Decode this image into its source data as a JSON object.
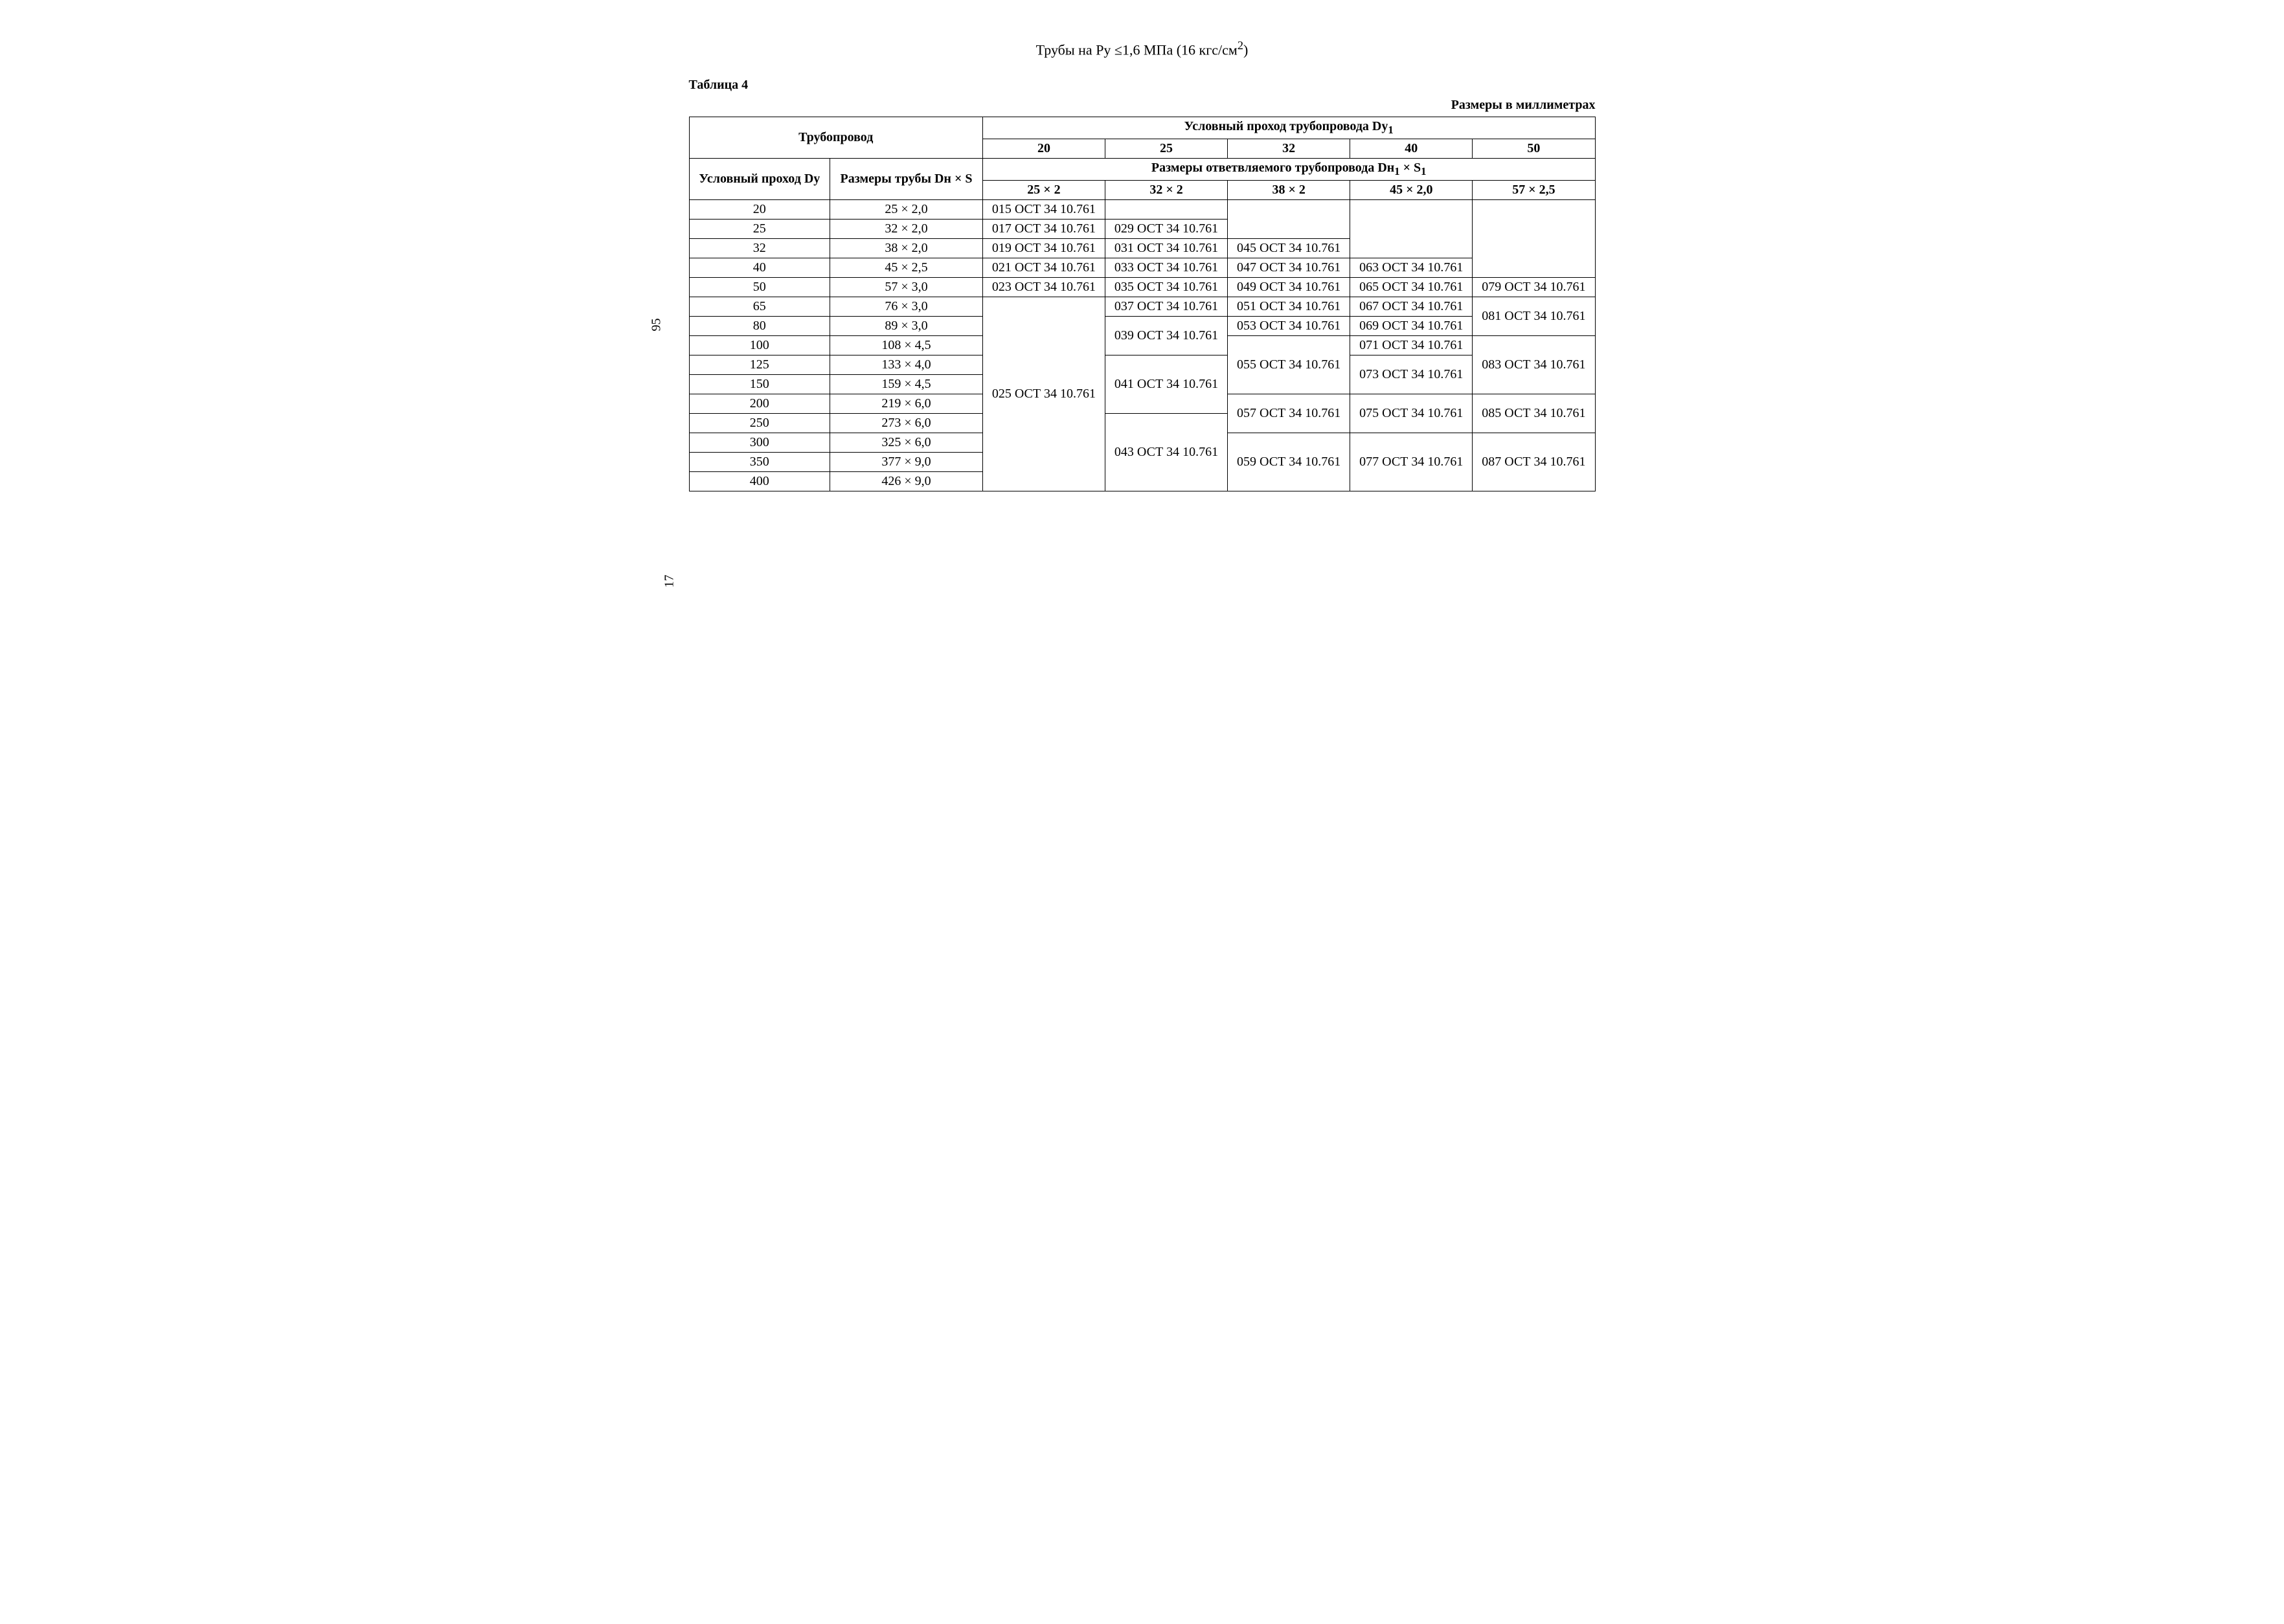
{
  "title_html": "Трубы на Ру ≤1,6 МПа (16 кгс/см<sup>2</sup>)",
  "table_label": "Таблица 4",
  "units_label": "Размеры в миллиметрах",
  "side_page_number": "95",
  "bottom_page_number": "17",
  "header": {
    "truboprovod": "Трубопровод",
    "usl_prohod_dy1_html": "Условный проход трубопровода Dу<sub>1</sub>",
    "usl_prohod_dy": "Условный проход Dу",
    "razmery_truby": "Размеры трубы Dн × S",
    "razmery_otv_html": "Размеры ответвляемого трубопровода Dн<sub>1</sub> × S<sub>1</sub>",
    "dy1_cols": [
      "20",
      "25",
      "32",
      "40",
      "50"
    ],
    "size_cols": [
      "25 × 2",
      "32 × 2",
      "38 × 2",
      "45 × 2,0",
      "57 × 2,5"
    ]
  },
  "rows": [
    {
      "dy": "20",
      "dn": "25 × 2,0"
    },
    {
      "dy": "25",
      "dn": "32 × 2,0"
    },
    {
      "dy": "32",
      "dn": "38 × 2,0"
    },
    {
      "dy": "40",
      "dn": "45 × 2,5"
    },
    {
      "dy": "50",
      "dn": "57 × 3,0"
    },
    {
      "dy": "65",
      "dn": "76 × 3,0"
    },
    {
      "dy": "80",
      "dn": "89 × 3,0"
    },
    {
      "dy": "100",
      "dn": "108 × 4,5"
    },
    {
      "dy": "125",
      "dn": "133 × 4,0"
    },
    {
      "dy": "150",
      "dn": "159 × 4,5"
    },
    {
      "dy": "200",
      "dn": "219 × 6,0"
    },
    {
      "dy": "250",
      "dn": "273 × 6,0"
    },
    {
      "dy": "300",
      "dn": "325 × 6,0"
    },
    {
      "dy": "350",
      "dn": "377 × 9,0"
    },
    {
      "dy": "400",
      "dn": "426 × 9,0"
    }
  ],
  "col1": {
    "r0": "015 ОСТ 34 10.761",
    "r1": "017 ОСТ 34 10.761",
    "r2": "019 ОСТ 34 10.761",
    "r3": "021 ОСТ 34 10.761",
    "r4": "023 ОСТ 34 10.761",
    "merged": "025 ОСТ 34 10.761"
  },
  "col2": {
    "r1": "029 ОСТ 34 10.761",
    "r2": "031 ОСТ 34 10.761",
    "r3": "033 ОСТ 34 10.761",
    "r4": "035 ОСТ 34 10.761",
    "r5": "037 ОСТ 34 10.761",
    "m67": "039 ОСТ 34 10.761",
    "m89a": "041 ОСТ 34 10.761",
    "mrest": "043 ОСТ 34 10.761"
  },
  "col3": {
    "r2": "045 ОСТ 34 10.761",
    "r3": "047 ОСТ 34 10.761",
    "r4": "049 ОСТ 34 10.761",
    "r5": "051 ОСТ 34 10.761",
    "r6": "053 ОСТ 34 10.761",
    "m789": "055 ОСТ 34 10.761",
    "m1011": "057 ОСТ 34 10.761",
    "mrest": "059 ОСТ 34 10.761"
  },
  "col4": {
    "r3": "063 ОСТ 34 10.761",
    "r4": "065 ОСТ 34 10.761",
    "r5": "067 ОСТ 34 10.761",
    "r6": "069 ОСТ 34 10.761",
    "r7": "071 ОСТ 34 10.761",
    "m89": "073 ОСТ 34 10.761",
    "m1011": "075 ОСТ 34 10.761",
    "mrest": "077 ОСТ 34 10.761"
  },
  "col5": {
    "r4": "079 ОСТ 34 10.761",
    "m56": "081 ОСТ 34 10.761",
    "m789": "083 ОСТ 34 10.761",
    "m1011": "085 ОСТ 34 10.761",
    "mrest": "087 ОСТ 34 10.761"
  }
}
